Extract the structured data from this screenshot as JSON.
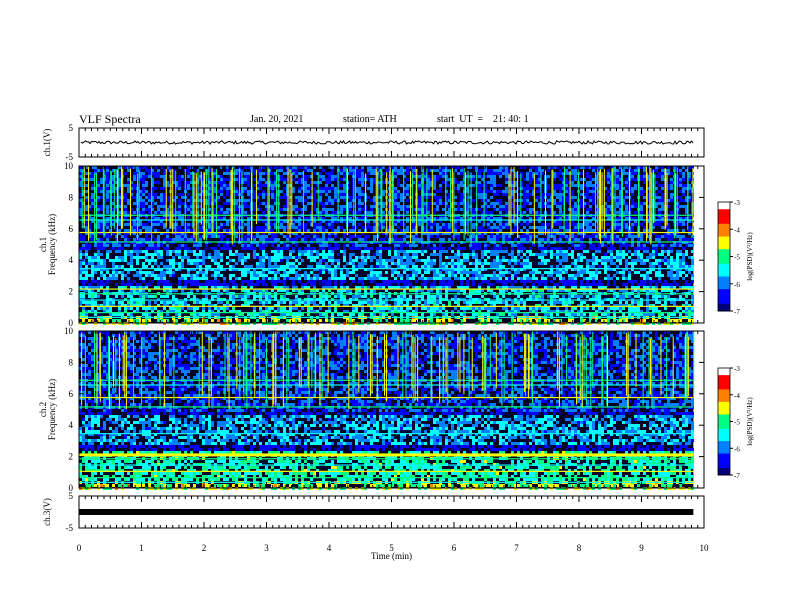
{
  "header": {
    "title": "VLF Spectra",
    "date": "Jan. 20, 2021",
    "station": "station= ATH",
    "start": "start  UT  =    21: 40: 1"
  },
  "colors": {
    "background_dark": "#000026",
    "colormap": [
      "#00007a",
      "#0000ff",
      "#0080ff",
      "#00ffff",
      "#00ff80",
      "#ffff00",
      "#ff8000",
      "#ff0000",
      "#ffffff"
    ]
  },
  "chart_data": [
    {
      "type": "line",
      "name": "ch1-waveform",
      "ylabel": "ch.1(V)",
      "ylim": [
        -5,
        5
      ],
      "yticks": [
        "5",
        "-5"
      ],
      "xlim": [
        0,
        10
      ],
      "trace_level_v": 0,
      "trace_noise_v": 0.7
    },
    {
      "type": "heatmap",
      "name": "ch1-spectrogram",
      "ylabel": "ch.1\nFrequency (kHz)",
      "ylim": [
        0,
        10
      ],
      "yticks": [
        "0",
        "2",
        "4",
        "6",
        "8",
        "10"
      ],
      "xlim": [
        0,
        9.83
      ],
      "colorbar": {
        "label": "log(PSD)(V²/Hz)",
        "range": [
          -7,
          -3
        ],
        "ticks": [
          "-3",
          "-4",
          "-5",
          "-6",
          "-7"
        ]
      }
    },
    {
      "type": "heatmap",
      "name": "ch2-spectrogram",
      "ylabel": "ch.2\nFrequency (kHz)",
      "ylim": [
        0,
        10
      ],
      "yticks": [
        "0",
        "2",
        "4",
        "6",
        "8",
        "10"
      ],
      "xlim": [
        0,
        9.83
      ],
      "colorbar": {
        "label": "log(PSD)(V²/Hz)",
        "range": [
          -7,
          -3
        ],
        "ticks": [
          "-3",
          "-4",
          "-5",
          "-6",
          "-7"
        ]
      }
    },
    {
      "type": "line",
      "name": "ch3-waveform",
      "ylabel": "ch.3(V)",
      "ylim": [
        -5,
        5
      ],
      "yticks": [
        "5",
        "-5"
      ],
      "xlim": [
        0,
        10
      ],
      "trace_level_v": 0,
      "trace_noise_v": 0
    }
  ],
  "xaxis": {
    "label": "Time (min)",
    "range": [
      0,
      10
    ],
    "ticks": [
      "0",
      "1",
      "2",
      "3",
      "4",
      "5",
      "6",
      "7",
      "8",
      "9",
      "10"
    ]
  }
}
